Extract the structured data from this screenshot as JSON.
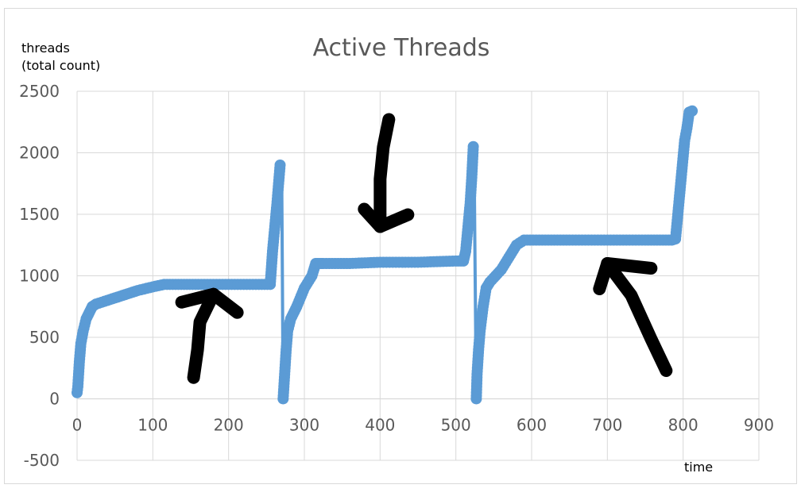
{
  "chart_data": {
    "type": "scatter",
    "title": "Active Threads",
    "ylabel": [
      "threads",
      "(total count)"
    ],
    "xlabel": "time",
    "xlim": [
      0,
      900
    ],
    "ylim": [
      -500,
      2500
    ],
    "xticks": [
      0,
      100,
      200,
      300,
      400,
      500,
      600,
      700,
      800,
      900
    ],
    "yticks": [
      2500,
      2000,
      1500,
      1000,
      500,
      0,
      -500
    ],
    "grid": true,
    "legend": "none",
    "series_color": "#5b9bd5",
    "annotation_color": "#000000",
    "annotations": [
      {
        "kind": "hand-drawn-arrow",
        "direction": "up",
        "points_to_x": 180,
        "points_to_y": 850
      },
      {
        "kind": "hand-drawn-arrow",
        "direction": "down",
        "points_to_x": 400,
        "points_to_y": 1400
      },
      {
        "kind": "hand-drawn-arrow",
        "direction": "up-left",
        "points_to_x": 700,
        "points_to_y": 1100
      }
    ],
    "series": [
      {
        "x": [
          0,
          1,
          2,
          3,
          5,
          8,
          12,
          16,
          20,
          25,
          40,
          60,
          80,
          100,
          115,
          130,
          160,
          200,
          240,
          255,
          258,
          261,
          264,
          266,
          268,
          270,
          271,
          272,
          274,
          276,
          278,
          282,
          290,
          300,
          310,
          315,
          320,
          325,
          360,
          400,
          450,
          500,
          510,
          513,
          516,
          519,
          521,
          523,
          524,
          525,
          527,
          528,
          530,
          532,
          536,
          540,
          545,
          560,
          570,
          580,
          590,
          650,
          700,
          750,
          785,
          790,
          793,
          796,
          799,
          802,
          805,
          808,
          812
        ],
        "y": [
          50,
          100,
          200,
          300,
          450,
          550,
          650,
          700,
          750,
          770,
          800,
          840,
          880,
          910,
          930,
          930,
          930,
          930,
          930,
          930,
          1200,
          1400,
          1600,
          1750,
          1900,
          1900,
          1000,
          0,
          200,
          400,
          550,
          650,
          750,
          900,
          1000,
          1100,
          1100,
          1100,
          1100,
          1110,
          1110,
          1120,
          1120,
          1200,
          1400,
          1600,
          1800,
          2050,
          2050,
          1300,
          0,
          200,
          400,
          550,
          750,
          900,
          950,
          1050,
          1150,
          1250,
          1290,
          1290,
          1290,
          1290,
          1290,
          1300,
          1500,
          1700,
          1900,
          2100,
          2200,
          2330,
          2340
        ]
      }
    ]
  }
}
